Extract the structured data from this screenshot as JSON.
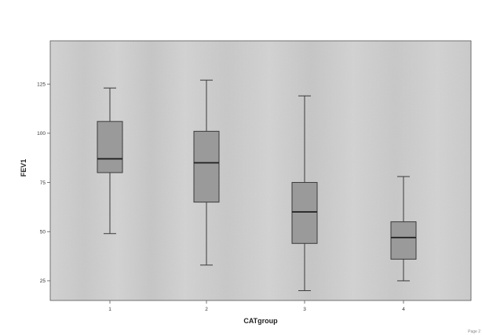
{
  "chart_data": {
    "type": "box",
    "xlabel": "CATgroup",
    "ylabel": "FEV1",
    "categories": [
      "1",
      "2",
      "3",
      "4"
    ],
    "yticks": [
      25,
      50,
      75,
      100,
      125
    ],
    "ylim": [
      15,
      147
    ],
    "grid": false,
    "legend": "none",
    "boxes": [
      {
        "category": "1",
        "whisker_low": 49,
        "q1": 80,
        "median": 87,
        "q3": 106,
        "whisker_high": 123
      },
      {
        "category": "2",
        "whisker_low": 33,
        "q1": 65,
        "median": 85,
        "q3": 101,
        "whisker_high": 127
      },
      {
        "category": "3",
        "whisker_low": 20,
        "q1": 44,
        "median": 60,
        "q3": 75,
        "whisker_high": 119
      },
      {
        "category": "4",
        "whisker_low": 25,
        "q1": 36,
        "median": 47,
        "q3": 55,
        "whisker_high": 78
      }
    ],
    "colors": {
      "plot_background": "#d2d2d2",
      "box_fill": "#9a9a9a",
      "line": "#3a3a3a",
      "frame": "#555555"
    }
  },
  "page_note": "Page 2"
}
